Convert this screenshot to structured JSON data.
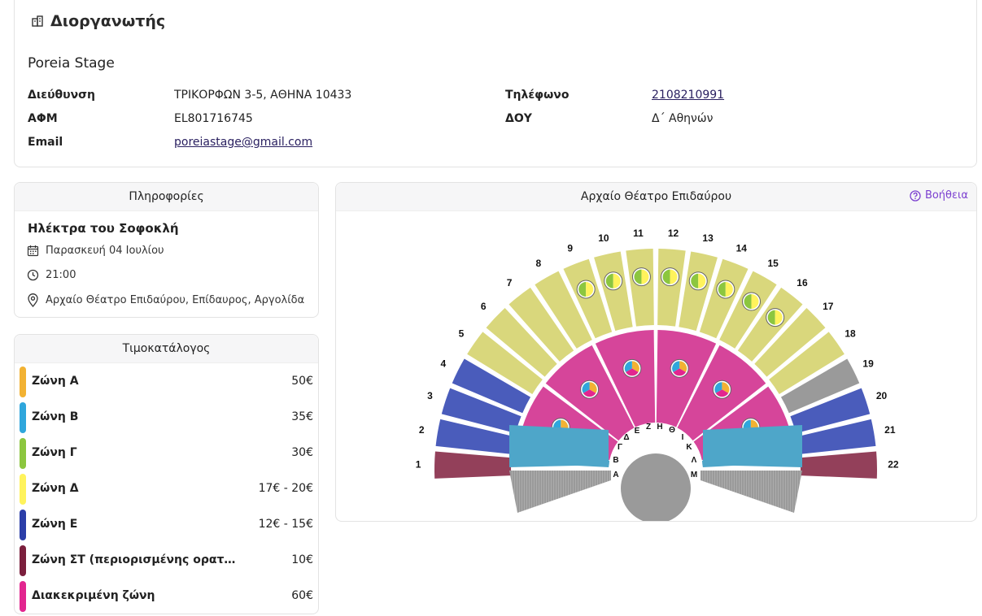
{
  "organizer": {
    "heading": "Διοργανωτής",
    "name": "Poreia Stage",
    "address_label": "Διεύθυνση",
    "address": "ΤΡΙΚΟΡΦΩΝ 3-5, ΑΘΗΝΑ 10433",
    "phone_label": "Τηλέφωνο",
    "phone": "2108210991",
    "afm_label": "ΑΦΜ",
    "afm": "EL801716745",
    "doy_label": "ΔΟΥ",
    "doy": "Δ΄ Αθηνών",
    "email_label": "Email",
    "email": "poreiastage@gmail.com"
  },
  "info": {
    "header": "Πληροφορίες",
    "title": "Ηλέκτρα του Σοφοκλή",
    "date": "Παρασκευή 04 Ιουλίου",
    "time": "21:00",
    "venue": "Αρχαίο Θέατρο Επιδαύρου, Επίδαυρος, Αργολίδα",
    "icons": [
      "calendar-icon",
      "clock-icon",
      "location-pin-icon"
    ]
  },
  "pricelist": {
    "header": "Τιμοκατάλογος",
    "zones": [
      {
        "name": "Ζώνη Α",
        "price": "50€",
        "color": "#f2b233"
      },
      {
        "name": "Ζώνη Β",
        "price": "35€",
        "color": "#2fa6dc"
      },
      {
        "name": "Ζώνη Γ",
        "price": "30€",
        "color": "#8cc63f"
      },
      {
        "name": "Ζώνη Δ",
        "price": "17€ - 20€",
        "color": "#fff35c"
      },
      {
        "name": "Ζώνη Ε",
        "price": "12€ - 15€",
        "color": "#2b3ea8"
      },
      {
        "name": "Ζώνη ΣΤ (περιορισμένης ορατ…",
        "price": "10€",
        "color": "#7b1f3d"
      },
      {
        "name": "Διακεκριμένη ζώνη",
        "price": "60€",
        "color": "#e2268f"
      }
    ]
  },
  "theatre": {
    "header": "Αρχαίο Θέατρο Επιδαύρου",
    "help": "Βοήθεια",
    "upper_sections": [
      "1",
      "2",
      "3",
      "4",
      "5",
      "6",
      "7",
      "8",
      "9",
      "10",
      "11",
      "12",
      "13",
      "14",
      "15",
      "16",
      "17",
      "18",
      "19",
      "20",
      "21",
      "22"
    ],
    "lower_rows_left": [
      "Α",
      "Β",
      "Γ",
      "Δ",
      "Ε",
      "Ζ"
    ],
    "lower_rows_right": [
      "Η",
      "Θ",
      "Ι",
      "Κ",
      "Λ",
      "Μ"
    ],
    "colors": {
      "khaki": "#d9d77c",
      "pink": "#d6459a",
      "teal": "#4ea6c9",
      "blue": "#4a5cbb",
      "maroon": "#93405a",
      "grey": "#9a9a9a"
    }
  }
}
